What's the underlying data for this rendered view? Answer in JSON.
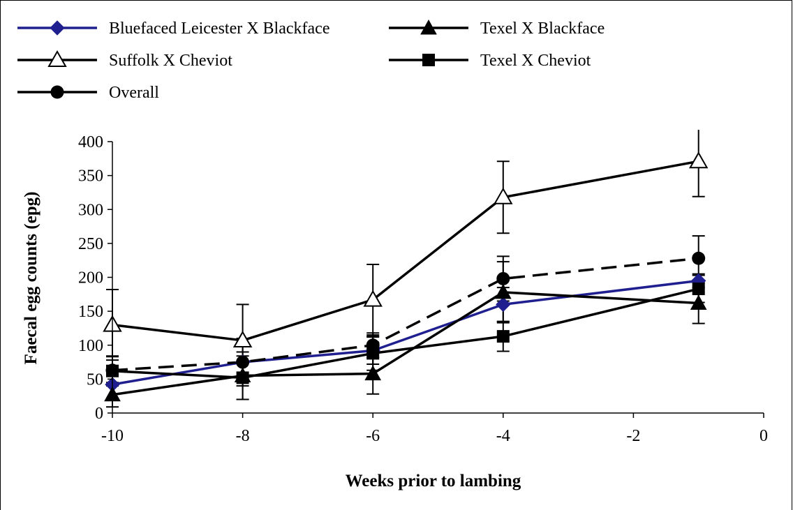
{
  "chart_data": {
    "type": "line",
    "title": "",
    "xlabel": "Weeks prior to lambing",
    "ylabel": "Faecal egg counts (epg)",
    "xlim": [
      -10,
      0
    ],
    "ylim": [
      0,
      400
    ],
    "x_ticks": [
      -10,
      -8,
      -6,
      -4,
      -2,
      0
    ],
    "y_ticks": [
      0,
      50,
      100,
      150,
      200,
      250,
      300,
      350,
      400
    ],
    "grid": false,
    "legend_placement": "top",
    "series": [
      {
        "name": "Bluefaced Leicester X Blackface",
        "marker": "diamond",
        "color": "#1f1f8f",
        "dash": "solid",
        "x": [
          -10,
          -8,
          -6,
          -4,
          -1
        ],
        "values": [
          42,
          75,
          92,
          160,
          195
        ],
        "error": [
          20,
          35,
          20,
          25,
          10
        ]
      },
      {
        "name": "Texel X Blackface",
        "marker": "triangle-filled",
        "color": "#000000",
        "dash": "solid",
        "x": [
          -10,
          -8,
          -6,
          -4,
          -1
        ],
        "values": [
          27,
          55,
          58,
          178,
          162
        ],
        "error": [
          18,
          35,
          30,
          45,
          30
        ]
      },
      {
        "name": "Suffolk X Cheviot",
        "marker": "triangle-open",
        "color": "#000000",
        "dash": "solid",
        "x": [
          -10,
          -8,
          -6,
          -4,
          -1
        ],
        "values": [
          130,
          107,
          167,
          318,
          371
        ],
        "error": [
          52,
          53,
          52,
          53,
          52
        ]
      },
      {
        "name": "Texel X Cheviot",
        "marker": "square",
        "color": "#000000",
        "dash": "solid",
        "x": [
          -10,
          -8,
          -6,
          -4,
          -1
        ],
        "values": [
          62,
          52,
          88,
          113,
          183
        ],
        "error": [
          22,
          32,
          25,
          22,
          20
        ]
      },
      {
        "name": "Overall",
        "marker": "circle",
        "color": "#000000",
        "dash": "dashed",
        "x": [
          -10,
          -8,
          -6,
          -4,
          -1
        ],
        "values": [
          63,
          75,
          100,
          198,
          228
        ],
        "error": [
          20,
          25,
          18,
          33,
          33
        ]
      }
    ]
  }
}
